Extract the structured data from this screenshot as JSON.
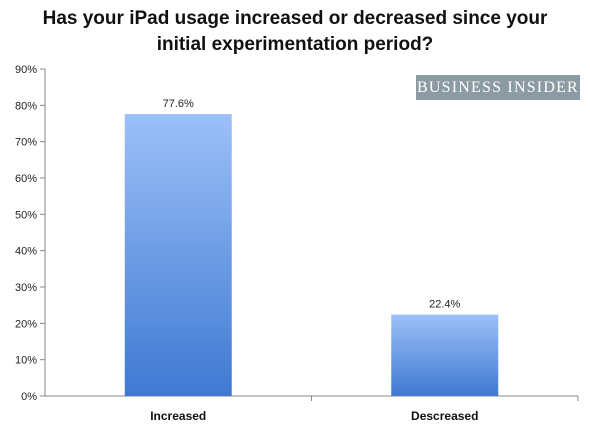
{
  "chart_data": {
    "type": "bar",
    "title_lines": [
      "Has your iPad usage increased or decreased since your",
      "initial experimentation period?"
    ],
    "categories": [
      "Increased",
      "Descreased"
    ],
    "values": [
      77.6,
      22.4
    ],
    "data_labels": [
      "77.6%",
      "22.4%"
    ],
    "ylim": [
      0,
      90
    ],
    "yticks": [
      "0%",
      "10%",
      "20%",
      "30%",
      "40%",
      "50%",
      "60%",
      "70%",
      "80%",
      "90%"
    ],
    "grid": false,
    "bar_gradient": [
      "#9cc0f8",
      "#3f79d2"
    ]
  },
  "brand": "Business Insider"
}
